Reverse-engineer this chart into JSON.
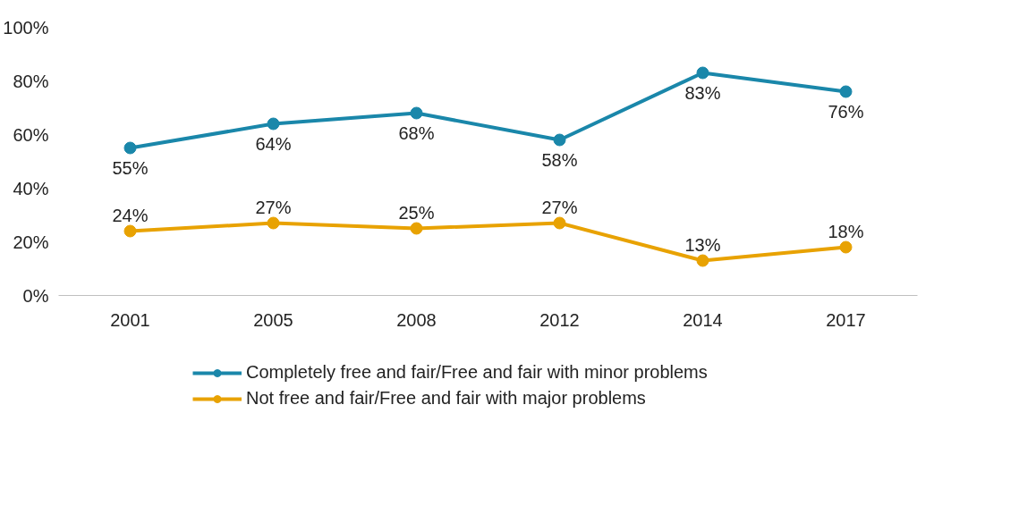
{
  "chart_data": {
    "type": "line",
    "categories": [
      "2001",
      "2005",
      "2008",
      "2012",
      "2014",
      "2017"
    ],
    "series": [
      {
        "name": "Completely free and fair/Free and fair with minor problems",
        "color": "#1a87aa",
        "values": [
          55,
          64,
          68,
          58,
          83,
          76
        ],
        "value_labels": [
          "55%",
          "64%",
          "68%",
          "58%",
          "83%",
          "76%"
        ]
      },
      {
        "name": "Not free and fair/Free and fair with major problems",
        "color": "#e8a202",
        "values": [
          24,
          27,
          25,
          27,
          13,
          18
        ],
        "value_labels": [
          "24%",
          "27%",
          "25%",
          "27%",
          "13%",
          "18%"
        ]
      }
    ],
    "ylim": [
      0,
      100
    ],
    "yticks": [
      {
        "value": 0,
        "label": "0%"
      },
      {
        "value": 20,
        "label": "20%"
      },
      {
        "value": 40,
        "label": "40%"
      },
      {
        "value": 60,
        "label": "60%"
      },
      {
        "value": 80,
        "label": "80%"
      },
      {
        "value": 100,
        "label": "100%"
      }
    ],
    "marker": "circle",
    "line_style": "solid",
    "grid": false,
    "legend": "bottom"
  }
}
